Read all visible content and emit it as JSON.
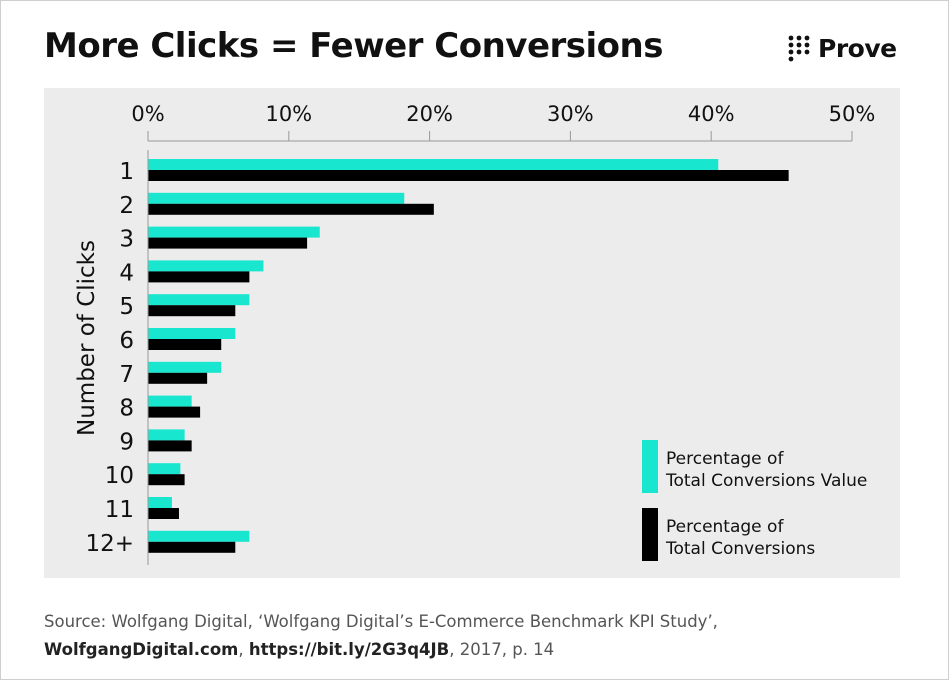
{
  "title": "More Clicks = Fewer Conversions",
  "brand": {
    "name": "Prove",
    "logo_icon": "dot-grid-icon"
  },
  "colors": {
    "value_series": "#19e6cf",
    "conversions_series": "#000000",
    "panel_bg": "#ececec"
  },
  "source": {
    "line1": "Source: Wolfgang Digital, ‘Wolfgang Digital’s E-Commerce Benchmark KPI Study’,",
    "site": "WolfgangDigital.com",
    "sep": ", ",
    "link": "https://bit.ly/2G3q4JB",
    "tail": ", 2017, p. 14"
  },
  "chart_data": {
    "type": "bar",
    "orientation": "horizontal",
    "xlim": [
      0,
      50
    ],
    "x_ticks": [
      "0%",
      "10%",
      "20%",
      "30%",
      "40%",
      "50%"
    ],
    "x_tick_values": [
      0,
      10,
      20,
      30,
      40,
      50
    ],
    "x_axis_position": "top",
    "ylabel": "Number of Clicks",
    "categories": [
      "1",
      "2",
      "3",
      "4",
      "5",
      "6",
      "7",
      "8",
      "9",
      "10",
      "11",
      "12+"
    ],
    "series": [
      {
        "name": "Percentage of Total Conversions Value",
        "legend_lines": [
          "Percentage of",
          "Total Conversions Value"
        ],
        "color": "#19e6cf",
        "values": [
          40.5,
          18.2,
          12.2,
          8.2,
          7.2,
          6.2,
          5.2,
          3.1,
          2.6,
          2.3,
          1.7,
          7.2
        ]
      },
      {
        "name": "Percentage of Total Conversions",
        "legend_lines": [
          "Percentage of",
          "Total Conversions"
        ],
        "color": "#000000",
        "values": [
          45.5,
          20.3,
          11.3,
          7.2,
          6.2,
          5.2,
          4.2,
          3.7,
          3.1,
          2.6,
          2.2,
          6.2
        ]
      }
    ],
    "legend_position": "bottom-right",
    "grid": false
  }
}
